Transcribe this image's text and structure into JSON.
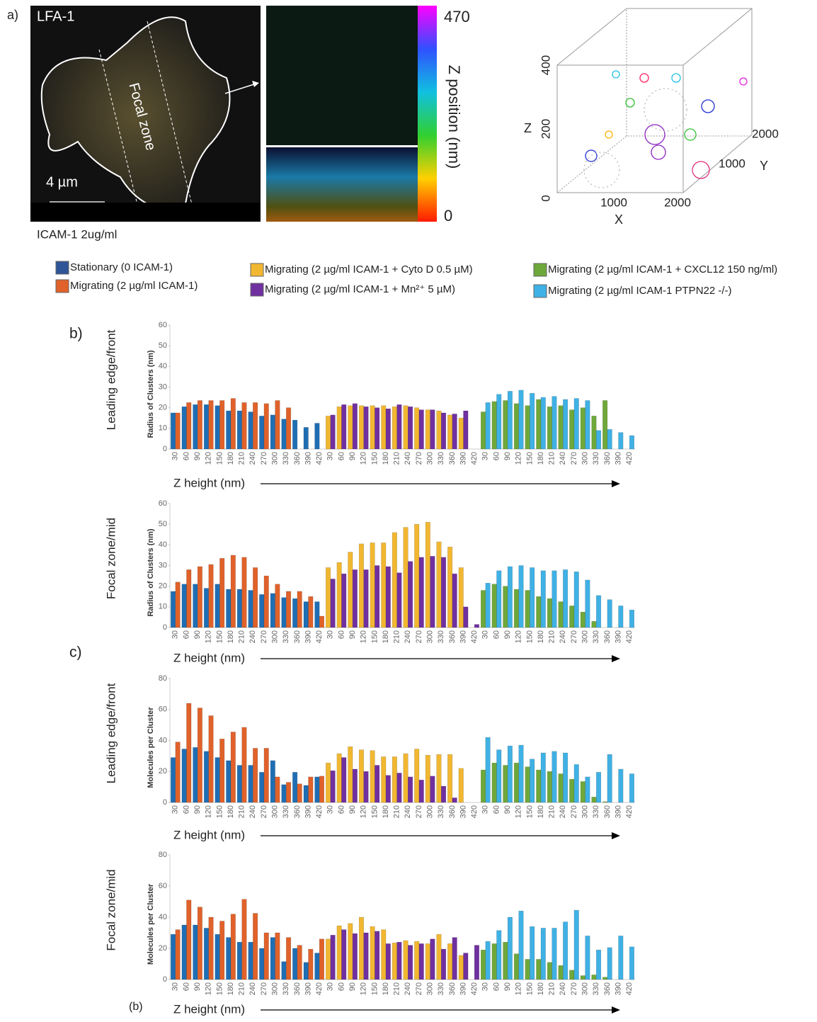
{
  "panel_a": {
    "label": "a)",
    "image_title": "LFA-1",
    "zone_label": "Focal zone",
    "scale_label": "4 µm",
    "condition": "ICAM-1 2ug/ml",
    "colorbar_max": "470",
    "colorbar_min": "0",
    "colorbar_label": "Z position (nm)",
    "plot3d": {
      "z_label": "Z",
      "x_label": "X",
      "y_label": "Y",
      "z_ticks": [
        "0",
        "200",
        "400"
      ],
      "x_ticks": [
        "1000",
        "2000"
      ],
      "y_ticks": [
        "1000",
        "2000"
      ]
    }
  },
  "legend": [
    {
      "name": "Stationary (0 ICAM-1)",
      "color": "#2e5597"
    },
    {
      "name": "Migrating (2 µg/ml ICAM-1)",
      "color": "#e0622a"
    },
    {
      "name": "Migrating (2 µg/ml ICAM-1 + Cyto D 0.5 µM)",
      "color": "#f2b731"
    },
    {
      "name": "Migrating (2 µg/ml ICAM-1 + Mn²⁺ 5 µM)",
      "color": "#7030a0"
    },
    {
      "name": "Migrating (2 µg/ml ICAM-1 + CXCL12 150 ng/ml)",
      "color": "#6fa83a"
    },
    {
      "name": "Migrating (2 µg/ml ICAM-1 PTPN22 -/-)",
      "color": "#3fb1e5"
    }
  ],
  "chart_data": [
    {
      "type": "bar",
      "panel_label": "b)",
      "row_label": "Leading edge/front",
      "ylabel": "Radius of Clusters (nm)",
      "xlabel": "Z height (nm)",
      "categories": [
        "30",
        "60",
        "90",
        "120",
        "150",
        "180",
        "210",
        "240",
        "270",
        "300",
        "330",
        "360",
        "390",
        "420"
      ],
      "ylim": [
        0,
        60
      ],
      "yticks": [
        0,
        10,
        20,
        30,
        40,
        50,
        60
      ],
      "series": [
        {
          "color": "#1f6eb4",
          "values": [
            17.5,
            20.5,
            21.5,
            21.5,
            21,
            18.5,
            18.5,
            18,
            16,
            16.5,
            14.5,
            14,
            10.5,
            12.5
          ]
        },
        {
          "color": "#e0622a",
          "values": [
            17.5,
            22.5,
            23.5,
            23.5,
            23.5,
            24.5,
            22.5,
            22.5,
            22,
            23.5,
            20,
            null,
            null,
            null
          ]
        },
        {
          "color": "#f2b731",
          "values": [
            16,
            20.5,
            21,
            21,
            21,
            21,
            20.5,
            21,
            20,
            19,
            18.5,
            16.5,
            15,
            null
          ]
        },
        {
          "color": "#7030a0",
          "values": [
            16.5,
            21.5,
            22,
            20.5,
            20,
            19.5,
            21.5,
            20.5,
            19,
            19,
            17.5,
            17,
            18.5,
            null
          ]
        },
        {
          "color": "#6fa83a",
          "values": [
            18,
            23,
            23.5,
            22,
            21,
            24,
            20.5,
            21,
            19,
            20,
            16,
            23.5,
            null,
            null
          ]
        },
        {
          "color": "#3fb1e5",
          "values": [
            22.5,
            26.5,
            28,
            28.5,
            27,
            25,
            25.5,
            24,
            24.5,
            23.5,
            9,
            9.5,
            8,
            6.5
          ]
        }
      ]
    },
    {
      "type": "bar",
      "row_label": "Focal zone/mid",
      "ylabel": "Radius of Clusters (nm)",
      "xlabel": "Z height (nm)",
      "categories": [
        "30",
        "60",
        "90",
        "120",
        "150",
        "180",
        "210",
        "240",
        "270",
        "300",
        "330",
        "360",
        "390",
        "420"
      ],
      "ylim": [
        0,
        60
      ],
      "yticks": [
        0,
        10,
        20,
        30,
        40,
        50,
        60
      ],
      "series": [
        {
          "color": "#1f6eb4",
          "values": [
            17.5,
            21,
            21,
            19,
            21,
            18.5,
            18.5,
            18,
            16,
            16.5,
            14.5,
            14,
            12.5,
            12.5
          ]
        },
        {
          "color": "#e0622a",
          "values": [
            22,
            28,
            29.5,
            30.5,
            33.5,
            35,
            34,
            29,
            25,
            21,
            17.5,
            17.5,
            15,
            5.5
          ]
        },
        {
          "color": "#f2b731",
          "values": [
            29,
            31.5,
            36.5,
            40.5,
            41,
            41,
            46,
            48.5,
            50,
            51,
            41.5,
            39,
            29,
            null
          ]
        },
        {
          "color": "#7030a0",
          "values": [
            23.5,
            26,
            28,
            28,
            30,
            29.5,
            26.5,
            32,
            34,
            34.5,
            34,
            26,
            10,
            1.5
          ]
        },
        {
          "color": "#6fa83a",
          "values": [
            18,
            21,
            20,
            18.5,
            18,
            15,
            14,
            12.5,
            10.5,
            7.5,
            3,
            null,
            null,
            null
          ]
        },
        {
          "color": "#3fb1e5",
          "values": [
            21.5,
            27.5,
            29.5,
            30,
            29,
            27.5,
            27.5,
            28,
            27,
            23,
            15.5,
            13.5,
            10.5,
            8.5
          ]
        }
      ]
    },
    {
      "type": "bar",
      "panel_label": "c)",
      "row_label": "Leading edge/front",
      "ylabel": "Molecules per Cluster",
      "xlabel": "Z height (nm)",
      "categories": [
        "30",
        "60",
        "90",
        "120",
        "150",
        "180",
        "210",
        "240",
        "270",
        "300",
        "330",
        "360",
        "390",
        "420"
      ],
      "ylim": [
        0,
        80
      ],
      "yticks": [
        0,
        20,
        40,
        60,
        80
      ],
      "series": [
        {
          "color": "#1f6eb4",
          "values": [
            29,
            34.5,
            35.5,
            33,
            29,
            27,
            24,
            24,
            19.5,
            27,
            11.5,
            19.5,
            11,
            16.5
          ]
        },
        {
          "color": "#e0622a",
          "values": [
            39,
            64,
            61,
            56,
            41,
            45.5,
            48.5,
            35,
            35,
            16.5,
            13,
            12,
            16.5,
            17
          ]
        },
        {
          "color": "#f2b731",
          "values": [
            25.5,
            31.5,
            36,
            34,
            33.5,
            29.5,
            29.5,
            31.5,
            34.5,
            30.5,
            31,
            31,
            22,
            null
          ]
        },
        {
          "color": "#7030a0",
          "values": [
            20.5,
            29,
            21.5,
            20,
            24,
            17.5,
            19,
            16.5,
            14.5,
            17,
            10.5,
            3,
            null,
            null
          ]
        },
        {
          "color": "#6fa83a",
          "values": [
            21,
            25.5,
            24,
            25.5,
            23,
            21,
            20,
            18.5,
            15,
            13.5,
            3.5,
            0.5,
            null,
            null
          ]
        },
        {
          "color": "#3fb1e5",
          "values": [
            42,
            34,
            36.5,
            37,
            28,
            32,
            33,
            32,
            24.5,
            16.5,
            19.5,
            31,
            21.5,
            18.5
          ]
        }
      ]
    },
    {
      "type": "bar",
      "panel_label": "(b)",
      "row_label": "Focal zone/mid",
      "ylabel": "Molecules per Cluster",
      "xlabel": "Z height (nm)",
      "categories": [
        "30",
        "60",
        "90",
        "120",
        "150",
        "180",
        "210",
        "240",
        "270",
        "300",
        "330",
        "360",
        "390",
        "420"
      ],
      "ylim": [
        0,
        80
      ],
      "yticks": [
        0,
        20,
        40,
        60,
        80
      ],
      "series": [
        {
          "color": "#1f6eb4",
          "values": [
            29,
            35,
            35,
            33,
            29,
            27,
            24,
            24,
            20,
            27,
            11.5,
            20,
            11,
            17
          ]
        },
        {
          "color": "#e0622a",
          "values": [
            32,
            51,
            46.5,
            40,
            37.5,
            42,
            51.5,
            42.5,
            30,
            30,
            27,
            22,
            19.5,
            26
          ]
        },
        {
          "color": "#f2b731",
          "values": [
            26,
            34.5,
            36,
            40,
            34,
            32,
            23.5,
            25,
            24.5,
            23,
            29,
            23,
            15.5,
            null
          ]
        },
        {
          "color": "#7030a0",
          "values": [
            28.5,
            32,
            29.5,
            30,
            31,
            23,
            24,
            22,
            23,
            26,
            19.5,
            27,
            17,
            22
          ]
        },
        {
          "color": "#6fa83a",
          "values": [
            19,
            23,
            24,
            16.5,
            13,
            13,
            11,
            9,
            6,
            2.5,
            3,
            1.5,
            null,
            null
          ]
        },
        {
          "color": "#3fb1e5",
          "values": [
            24.5,
            31.5,
            40,
            44,
            34,
            33,
            33,
            37,
            44.5,
            28,
            19,
            20.5,
            28,
            21
          ]
        }
      ]
    }
  ]
}
